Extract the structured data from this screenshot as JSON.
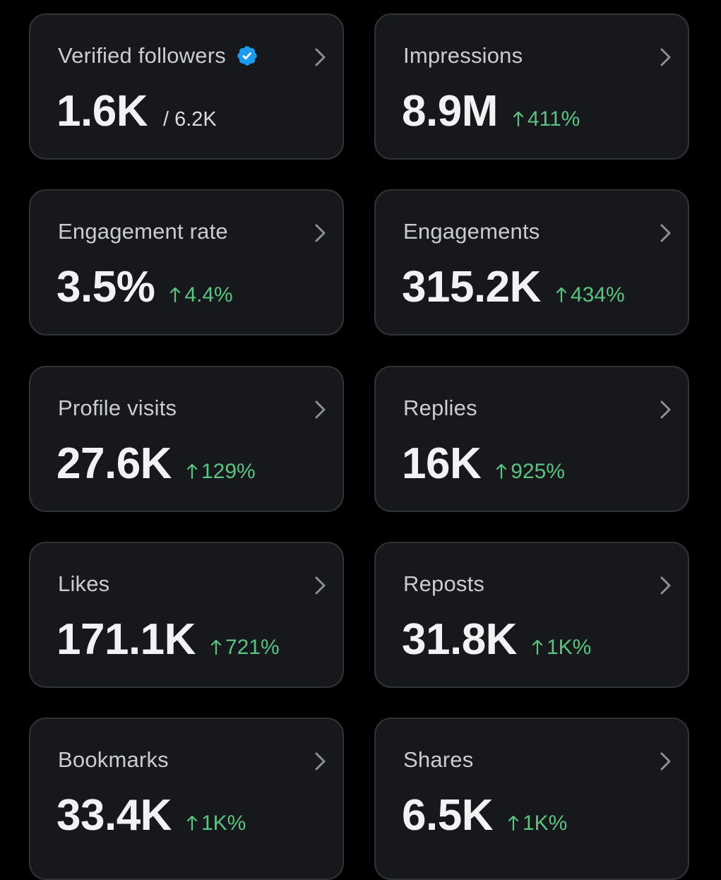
{
  "colors": {
    "background": "#000000",
    "card": "#16181c",
    "border": "#2f3336",
    "title": "#c9cdd1",
    "value": "#f0f2f3",
    "positive": "#5bc381",
    "verified": "#1d9bf0"
  },
  "cards": [
    {
      "title": "Verified followers",
      "value": "1.6K",
      "suffix": "/ 6.2K",
      "icon": "verified-badge-icon"
    },
    {
      "title": "Impressions",
      "value": "8.9M",
      "delta": "411%"
    },
    {
      "title": "Engagement rate",
      "value": "3.5%",
      "delta": "4.4%"
    },
    {
      "title": "Engagements",
      "value": "315.2K",
      "delta": "434%"
    },
    {
      "title": "Profile visits",
      "value": "27.6K",
      "delta": "129%"
    },
    {
      "title": "Replies",
      "value": "16K",
      "delta": "925%"
    },
    {
      "title": "Likes",
      "value": "171.1K",
      "delta": "721%"
    },
    {
      "title": "Reposts",
      "value": "31.8K",
      "delta": "1K%"
    },
    {
      "title": "Bookmarks",
      "value": "33.4K",
      "delta": "1K%"
    },
    {
      "title": "Shares",
      "value": "6.5K",
      "delta": "1K%"
    }
  ]
}
